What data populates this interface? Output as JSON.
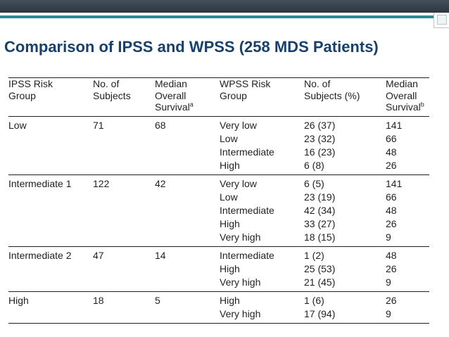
{
  "slide": {
    "title": "Comparison of IPSS and WPSS (258 MDS Patients)"
  },
  "table": {
    "headers": [
      {
        "lines": [
          "IPSS Risk",
          "Group"
        ],
        "sup": ""
      },
      {
        "lines": [
          "No. of",
          "Subjects"
        ],
        "sup": ""
      },
      {
        "lines": [
          "Median",
          "Overall",
          "Survival"
        ],
        "sup": "a"
      },
      {
        "lines": [
          "WPSS Risk",
          "Group"
        ],
        "sup": ""
      },
      {
        "lines": [
          "No. of",
          "Subjects (%)"
        ],
        "sup": ""
      },
      {
        "lines": [
          "Median",
          "Overall",
          "Survival"
        ],
        "sup": "b"
      }
    ],
    "groups": [
      {
        "ipss": "Low",
        "subjects": "71",
        "survival": "68",
        "wpss": [
          "Very low",
          "Low",
          "Intermediate",
          "High"
        ],
        "wpss_subjects": [
          "26 (37)",
          "23 (32)",
          "16 (23)",
          "6 (8)"
        ],
        "wpss_survival": [
          "141",
          "66",
          "48",
          "26"
        ]
      },
      {
        "ipss": "Intermediate 1",
        "subjects": "122",
        "survival": "42",
        "wpss": [
          "Very low",
          "Low",
          "Intermediate",
          "High",
          "Very high"
        ],
        "wpss_subjects": [
          "6 (5)",
          "23 (19)",
          "42 (34)",
          "33 (27)",
          "18 (15)"
        ],
        "wpss_survival": [
          "141",
          "66",
          "48",
          "26",
          "9"
        ]
      },
      {
        "ipss": "Intermediate 2",
        "subjects": "47",
        "survival": "14",
        "wpss": [
          "Intermediate",
          "High",
          "Very high"
        ],
        "wpss_subjects": [
          "1 (2)",
          "25 (53)",
          "21 (45)"
        ],
        "wpss_survival": [
          "48",
          "26",
          "9"
        ]
      },
      {
        "ipss": "High",
        "subjects": "18",
        "survival": "5",
        "wpss": [
          "High",
          "Very high"
        ],
        "wpss_subjects": [
          "1 (6)",
          "17 (94)"
        ],
        "wpss_survival": [
          "26",
          "9"
        ]
      }
    ]
  }
}
